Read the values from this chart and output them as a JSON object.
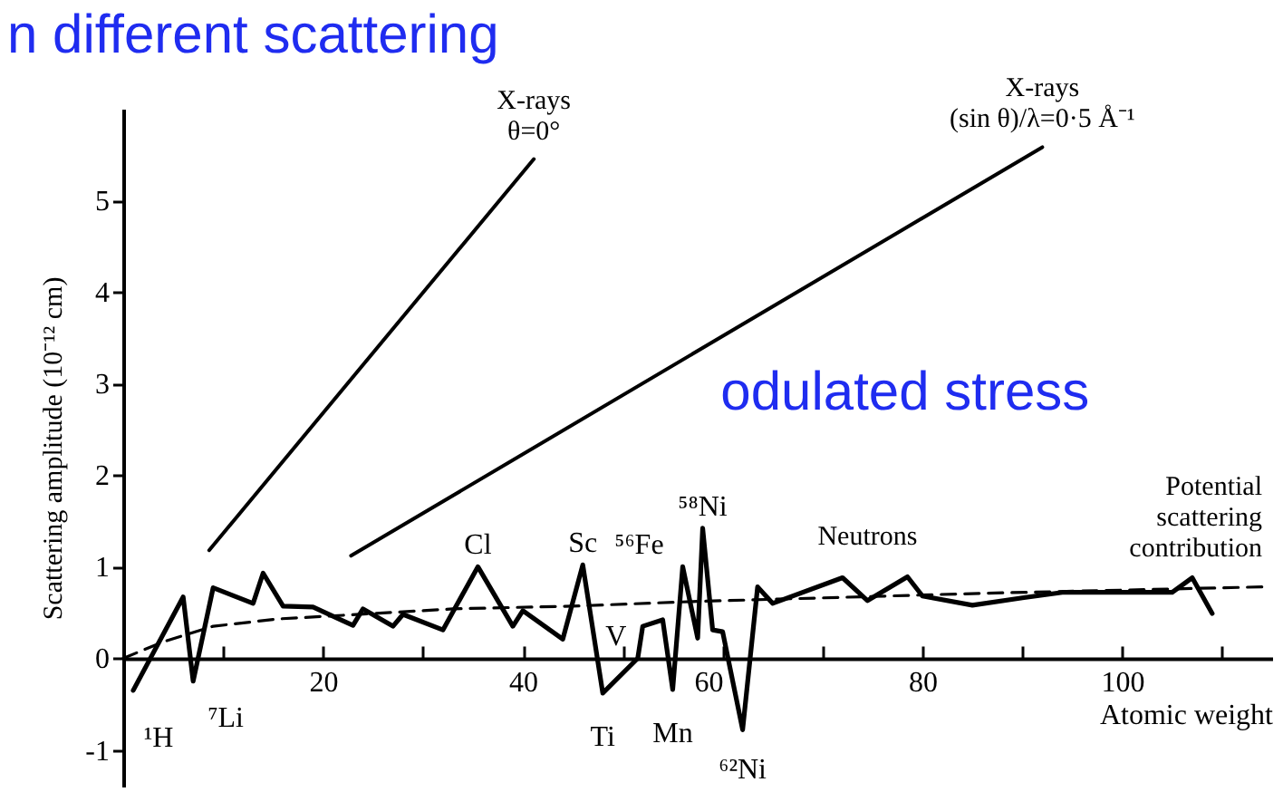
{
  "chart_data": {
    "type": "line",
    "xlabel": "Atomic weight",
    "ylabel": "Scattering amplitude (10⁻¹² cm)",
    "xlim": [
      0,
      115
    ],
    "ylim": [
      -1.4,
      6
    ],
    "xticks": [
      {
        "value": 10,
        "label": null
      },
      20,
      {
        "value": 30,
        "label": null
      },
      40,
      {
        "value": 50,
        "label": null
      },
      60,
      {
        "value": 70,
        "label": null
      },
      80,
      {
        "value": 90,
        "label": null
      },
      100,
      {
        "value": 110,
        "label": null
      }
    ],
    "yticks": [
      -1,
      0,
      1,
      2,
      3,
      4,
      5
    ],
    "grid": false,
    "legend": false,
    "marker": "none",
    "series": [
      {
        "name": "Neutrons",
        "color": "#000000",
        "line_style": "solid",
        "x": [
          1,
          6,
          7,
          9,
          13,
          14,
          16,
          19,
          22,
          23,
          24,
          27,
          28,
          32,
          35.5,
          39,
          40,
          44,
          46,
          48,
          51.5,
          52,
          54,
          55,
          56,
          57.5,
          58,
          59,
          60,
          62,
          63.5,
          65,
          72,
          74.5,
          78.5,
          80,
          85,
          90,
          94,
          105,
          107,
          109
        ],
        "values": [
          -0.35,
          0.67,
          -0.25,
          0.77,
          0.6,
          0.93,
          0.57,
          0.56,
          0.41,
          0.36,
          0.54,
          0.35,
          0.48,
          0.31,
          1.0,
          0.35,
          0.52,
          0.21,
          1.02,
          -0.38,
          0.0,
          0.35,
          0.42,
          -0.34,
          1.0,
          0.22,
          1.42,
          0.31,
          0.29,
          -0.78,
          0.78,
          0.6,
          0.88,
          0.63,
          0.89,
          0.68,
          0.58,
          0.66,
          0.72,
          0.72,
          0.88,
          0.49
        ]
      },
      {
        "name": "Potential\nscattering\ncontribution",
        "color": "#000000",
        "line_style": "dashed",
        "x": [
          0,
          4,
          9,
          15.5,
          22,
          33,
          45,
          57,
          70,
          86,
          114
        ],
        "values": [
          0,
          0.18,
          0.35,
          0.43,
          0.47,
          0.54,
          0.57,
          0.62,
          0.66,
          0.71,
          0.78
        ]
      },
      {
        "name": "X-rays\nθ=0°",
        "color": "#000000",
        "line_style": "solid",
        "x": [
          8.6,
          41.1
        ],
        "values": [
          1.18,
          5.45
        ]
      },
      {
        "name": "X-rays\n(sin θ)/λ=0·5 Å⁻¹",
        "color": "#000000",
        "line_style": "solid",
        "x": [
          22.8,
          92
        ],
        "values": [
          1.12,
          5.58
        ]
      }
    ],
    "annotations": [
      {
        "text": "¹H",
        "x": 1,
        "y": -0.35
      },
      {
        "text": "⁷Li",
        "x": 7,
        "y": -0.25
      },
      {
        "text": "Cl",
        "x": 35.5,
        "y": 1.0
      },
      {
        "text": "Sc",
        "x": 46,
        "y": 1.02
      },
      {
        "text": "Ti",
        "x": 48,
        "y": -0.38
      },
      {
        "text": "V",
        "x": 51.5,
        "y": 0.0
      },
      {
        "text": "Mn",
        "x": 55,
        "y": -0.34
      },
      {
        "text": "⁵⁶Fe",
        "x": 56,
        "y": 1.0
      },
      {
        "text": "⁵⁸Ni",
        "x": 58,
        "y": 1.42
      },
      {
        "text": "⁶²Ni",
        "x": 62,
        "y": -0.78
      },
      "n different scattering",
      "odulated stress"
    ]
  }
}
